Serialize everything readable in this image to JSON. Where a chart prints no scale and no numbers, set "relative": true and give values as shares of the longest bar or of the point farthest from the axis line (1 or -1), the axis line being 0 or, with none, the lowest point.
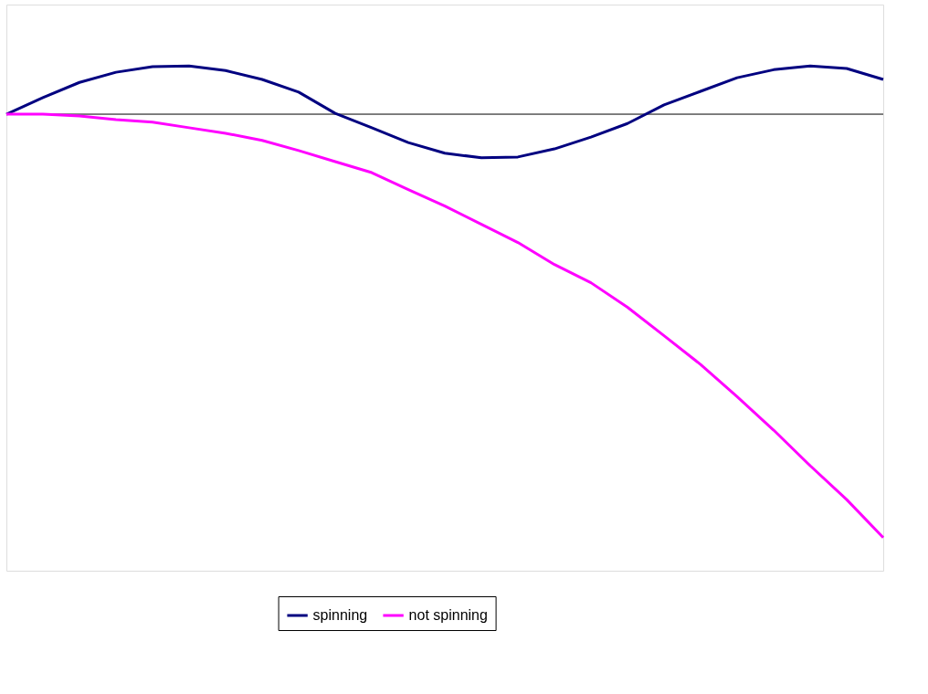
{
  "chart_data": {
    "type": "line",
    "relative": true,
    "categories": [
      null,
      null,
      null,
      null,
      null,
      null,
      null,
      null,
      null,
      null,
      null,
      null,
      null,
      null,
      null,
      null,
      null,
      null,
      null,
      null,
      null,
      null,
      null,
      null,
      null
    ],
    "series": [
      {
        "name": "spinning",
        "color": "#000080",
        "values": [
          0,
          0.039,
          0.075,
          0.099,
          0.112,
          0.114,
          0.103,
          0.082,
          0.052,
          0.002,
          -0.032,
          -0.067,
          -0.092,
          -0.103,
          -0.101,
          -0.082,
          -0.054,
          -0.022,
          0.022,
          0.054,
          0.086,
          0.105,
          0.114,
          0.108,
          0.082
        ]
      },
      {
        "name": "not spinning",
        "color": "#ff00ff",
        "values": [
          0,
          0,
          -0.004,
          -0.013,
          -0.019,
          -0.032,
          -0.045,
          -0.062,
          -0.086,
          -0.112,
          -0.138,
          -0.178,
          -0.217,
          -0.26,
          -0.303,
          -0.355,
          -0.398,
          -0.456,
          -0.523,
          -0.591,
          -0.667,
          -0.746,
          -0.83,
          -0.91,
          -1
        ]
      }
    ],
    "legend": "bottom",
    "grid": false,
    "marker": "none",
    "line_style": "solid"
  }
}
